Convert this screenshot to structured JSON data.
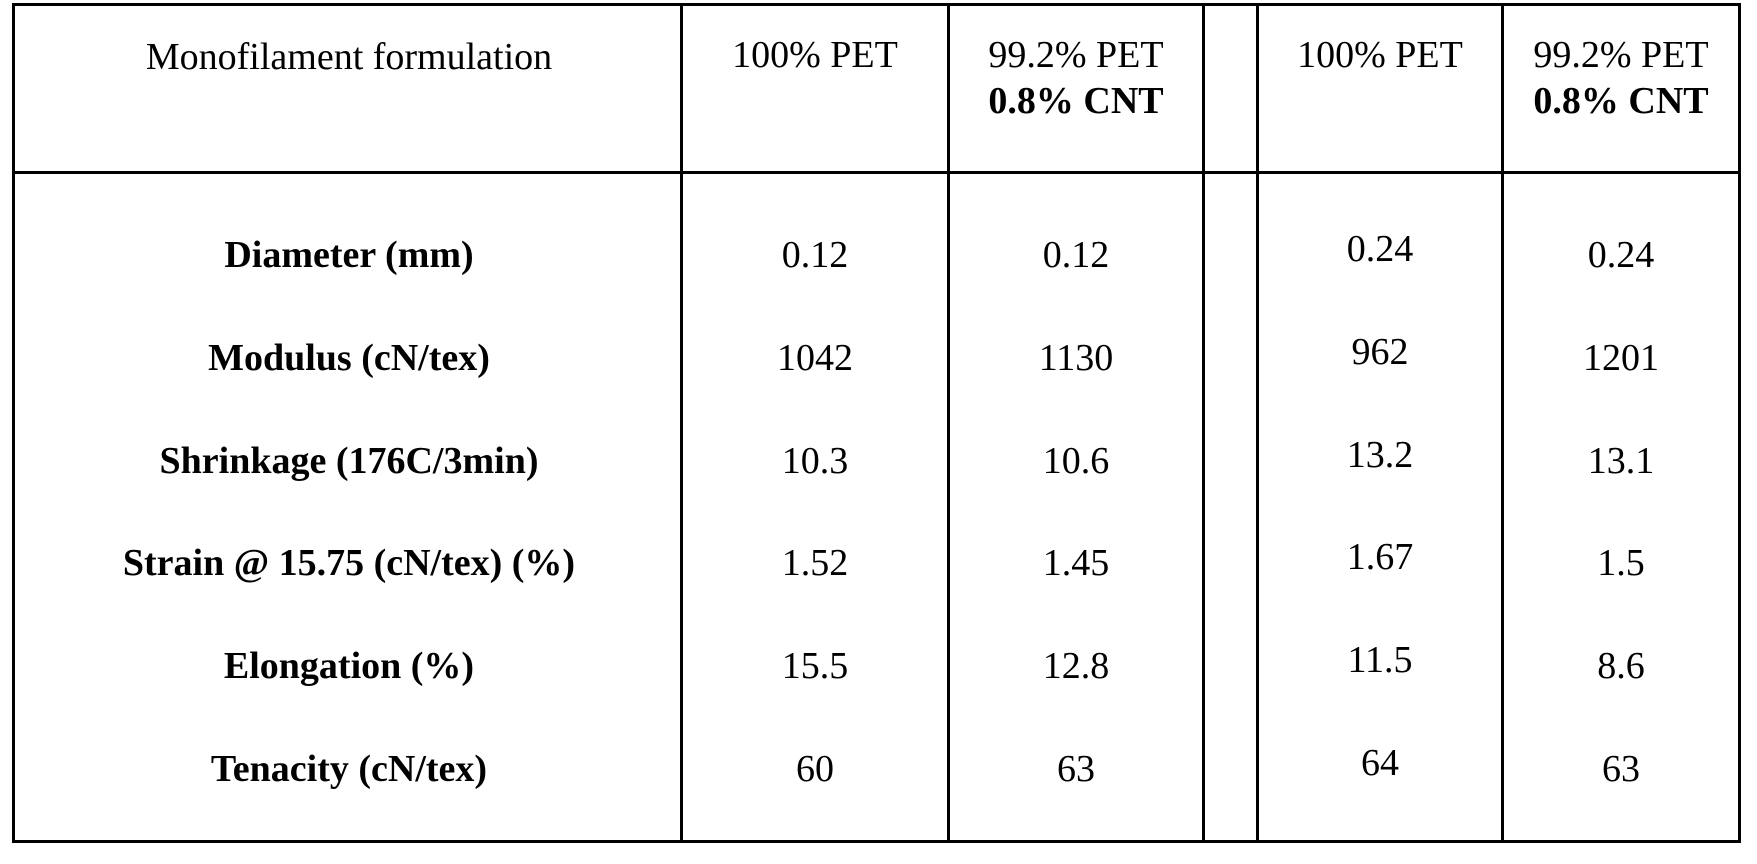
{
  "table": {
    "header": {
      "label": "Monofilament formulation",
      "columns": [
        {
          "line1": "100% PET",
          "line2": ""
        },
        {
          "line1": "99.2% PET",
          "line2": "0.8% CNT"
        },
        {
          "line1": "100% PET",
          "line2": ""
        },
        {
          "line1": "99.2% PET",
          "line2": "0.8% CNT"
        }
      ]
    },
    "rows": [
      {
        "label": "Diameter (mm)",
        "values": [
          "0.12",
          "0.12",
          "0.24",
          "0.24"
        ]
      },
      {
        "label": "Modulus (cN/tex)",
        "values": [
          "1042",
          "1130",
          "962",
          "1201"
        ]
      },
      {
        "label": "Shrinkage (176C/3min)",
        "values": [
          "10.3",
          "10.6",
          "13.2",
          "13.1"
        ]
      },
      {
        "label": "Strain @ 15.75 (cN/tex) (%)",
        "values": [
          "1.52",
          "1.45",
          "1.67",
          "1.5"
        ]
      },
      {
        "label": "Elongation (%)",
        "values": [
          "15.5",
          "12.8",
          "11.5",
          "8.6"
        ]
      },
      {
        "label": "Tenacity (cN/tex)",
        "values": [
          "60",
          "63",
          "64",
          "63"
        ]
      }
    ]
  }
}
